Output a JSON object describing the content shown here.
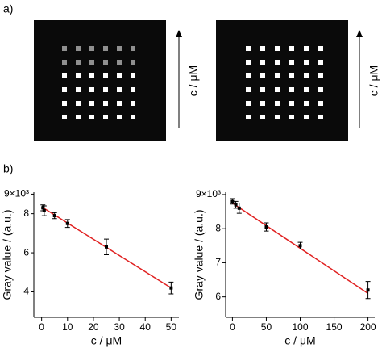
{
  "figure": {
    "label_a": "a)",
    "label_b": "b)",
    "images": [
      {
        "axis_label": "c / μM"
      },
      {
        "axis_label": "c / μM"
      }
    ]
  },
  "chart_data": [
    {
      "type": "scatter",
      "xlabel": "c / μM",
      "ylabel": "Gray value / (a.u.)",
      "xlim": [
        -3,
        53
      ],
      "xticks": [
        0,
        10,
        20,
        30,
        40,
        50
      ],
      "ylim": [
        2.7,
        9.1
      ],
      "yticks": [
        {
          "value": 9,
          "label": "9×10³"
        },
        8,
        6,
        4
      ],
      "points": {
        "color": "#000000",
        "x": [
          0.5,
          1,
          5,
          10,
          25,
          50
        ],
        "values": [
          8.3,
          8.15,
          7.9,
          7.5,
          6.3,
          4.2
        ],
        "errors": [
          0.15,
          0.25,
          0.15,
          0.2,
          0.4,
          0.3
        ]
      },
      "fit": {
        "color": "#e02020",
        "x": [
          0,
          50
        ],
        "values": [
          8.35,
          4.2
        ]
      }
    },
    {
      "type": "scatter",
      "xlabel": "c / μM",
      "ylabel": "Gray value / (a.u.)",
      "xlim": [
        -10,
        210
      ],
      "xticks": [
        0,
        50,
        100,
        150,
        200
      ],
      "ylim": [
        5.4,
        9.07
      ],
      "yticks": [
        {
          "value": 9,
          "label": "9×10³"
        },
        8,
        7,
        6
      ],
      "points": {
        "color": "#000000",
        "x": [
          0,
          5,
          10,
          50,
          100,
          200
        ],
        "values": [
          8.8,
          8.7,
          8.6,
          8.05,
          7.5,
          6.2
        ],
        "errors": [
          0.08,
          0.1,
          0.15,
          0.12,
          0.1,
          0.25
        ]
      },
      "fit": {
        "color": "#e02020",
        "x": [
          0,
          200
        ],
        "values": [
          8.75,
          6.1
        ]
      }
    }
  ]
}
